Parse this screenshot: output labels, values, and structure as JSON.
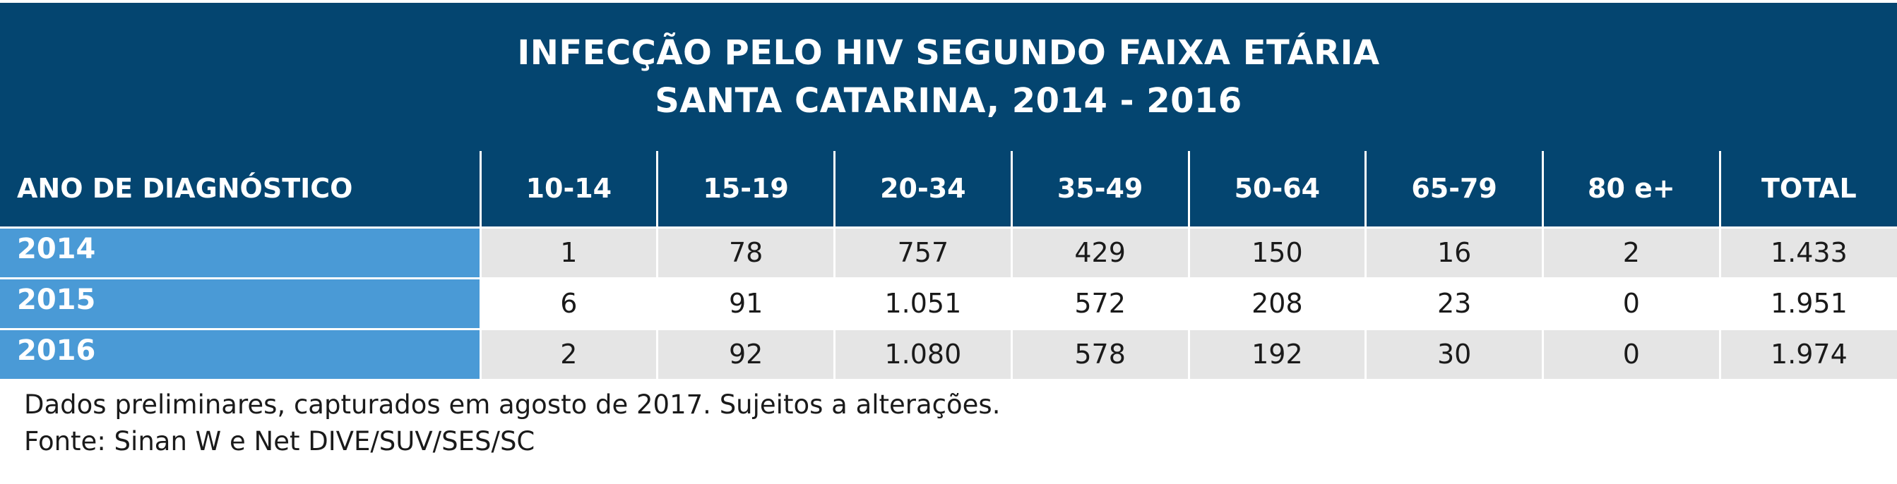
{
  "title": {
    "line1": "INFECÇÃO PELO HIV SEGUNDO FAIXA ETÁRIA",
    "line2": "SANTA CATARINA, 2014 - 2016"
  },
  "table": {
    "row_header": "ANO DE DIAGNÓSTICO",
    "columns": [
      "10-14",
      "15-19",
      "20-34",
      "35-49",
      "50-64",
      "65-79",
      "80 e+",
      "TOTAL"
    ],
    "rows": [
      {
        "year": "2014",
        "values": [
          "1",
          "78",
          "757",
          "429",
          "150",
          "16",
          "2",
          "1.433"
        ]
      },
      {
        "year": "2015",
        "values": [
          "6",
          "91",
          "1.051",
          "572",
          "208",
          "23",
          "0",
          "1.951"
        ]
      },
      {
        "year": "2016",
        "values": [
          "2",
          "92",
          "1.080",
          "578",
          "192",
          "30",
          "0",
          "1.974"
        ]
      }
    ]
  },
  "notes": {
    "line1": "Dados preliminares, capturados em agosto de 2017. Sujeitos a alterações.",
    "line2": "Fonte: Sinan W e Net DIVE/SUV/SES/SC"
  },
  "colors": {
    "header_bg": "#044570",
    "year_bg": "#4a9ad6",
    "shade_row_bg": "#e5e5e5"
  },
  "chart_data": {
    "type": "table",
    "title": "INFECÇÃO PELO HIV SEGUNDO FAIXA ETÁRIA — SANTA CATARINA, 2014 - 2016",
    "categories": [
      "10-14",
      "15-19",
      "20-34",
      "35-49",
      "50-64",
      "65-79",
      "80 e+",
      "TOTAL"
    ],
    "series": [
      {
        "name": "2014",
        "values": [
          1,
          78,
          757,
          429,
          150,
          16,
          2,
          1433
        ]
      },
      {
        "name": "2015",
        "values": [
          6,
          91,
          1051,
          572,
          208,
          23,
          0,
          1951
        ]
      },
      {
        "name": "2016",
        "values": [
          2,
          92,
          1080,
          578,
          192,
          30,
          0,
          1974
        ]
      }
    ]
  }
}
